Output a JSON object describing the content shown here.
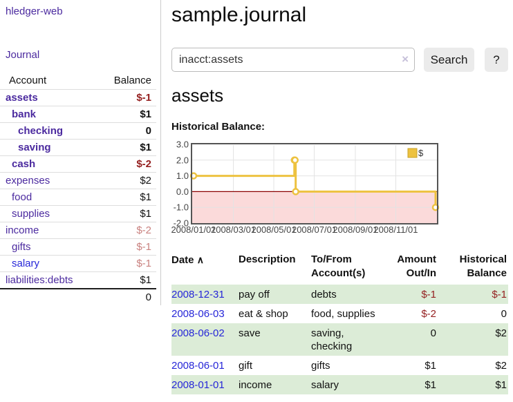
{
  "sidebar": {
    "brand": "hledger-web",
    "journal_link": "Journal",
    "accounts_table": {
      "headers": {
        "account": "Account",
        "balance": "Balance"
      },
      "rows": [
        {
          "name": "assets",
          "indent": 0,
          "balance": "$-1",
          "bold": true,
          "negative": "strong"
        },
        {
          "name": "bank",
          "indent": 1,
          "balance": "$1",
          "bold": true,
          "negative": "none"
        },
        {
          "name": "checking",
          "indent": 2,
          "balance": "0",
          "bold": true,
          "negative": "none"
        },
        {
          "name": "saving",
          "indent": 2,
          "balance": "$1",
          "bold": true,
          "negative": "none"
        },
        {
          "name": "cash",
          "indent": 1,
          "balance": "$-2",
          "bold": true,
          "negative": "strong"
        },
        {
          "name": "expenses",
          "indent": 0,
          "balance": "$2",
          "bold": false,
          "negative": "none"
        },
        {
          "name": "food",
          "indent": 1,
          "balance": "$1",
          "bold": false,
          "negative": "none"
        },
        {
          "name": "supplies",
          "indent": 1,
          "balance": "$1",
          "bold": false,
          "negative": "none"
        },
        {
          "name": "income",
          "indent": 0,
          "balance": "$-2",
          "bold": false,
          "negative": "soft"
        },
        {
          "name": "gifts",
          "indent": 1,
          "balance": "$-1",
          "bold": false,
          "negative": "soft"
        },
        {
          "name": "salary",
          "indent": 1,
          "balance": "$-1",
          "bold": false,
          "negative": "soft",
          "link_style": "blue"
        },
        {
          "name": "liabilities:debts",
          "indent": 0,
          "balance": "$1",
          "bold": false,
          "negative": "none"
        }
      ],
      "total": "0"
    }
  },
  "header": {
    "title": "sample.journal"
  },
  "search": {
    "value": "inacct:assets",
    "clear_icon": "×",
    "button_label": "Search",
    "help_label": "?"
  },
  "account_page": {
    "heading": "assets",
    "chart_label": "Historical Balance:"
  },
  "chart_data": {
    "type": "line",
    "title": "Historical Balance:",
    "step": true,
    "series": [
      {
        "name": "$",
        "color": "#edc240",
        "points": [
          [
            "2008-01-01",
            1
          ],
          [
            "2008-06-01",
            2
          ],
          [
            "2008-06-02",
            2
          ],
          [
            "2008-06-03",
            0
          ],
          [
            "2008-12-31",
            -1
          ]
        ]
      }
    ],
    "xlim": [
      "2008-01-01",
      "2008-12-31"
    ],
    "ylim": [
      -2,
      3
    ],
    "yticks": [
      "3.0",
      "2.0",
      "1.0",
      "0.0",
      "-1.0",
      "-2.0"
    ],
    "ytick_values": [
      3,
      2,
      1,
      0,
      -1,
      -2
    ],
    "xticks": [
      "2008/01/01",
      "2008/03/01",
      "2008/05/01",
      "2008/07/01",
      "2008/09/01",
      "2008/11/01"
    ],
    "xtick_dates": [
      "2008-01-01",
      "2008-03-01",
      "2008-05-01",
      "2008-07-01",
      "2008-09-01",
      "2008-11-01"
    ],
    "legend": "$",
    "legend_position": "top-right",
    "grid": true,
    "colors": {
      "line": "#edc240",
      "marker_fill": "#ffffff",
      "negative_region": "#fbdada",
      "zero_line": "#8b0000",
      "gridline": "#e3e3e3",
      "border": "#545454",
      "tick_text": "#444444"
    }
  },
  "register_table": {
    "columns": [
      "Date",
      "Description",
      "To/From Account(s)",
      "Amount Out/In",
      "Historical Balance"
    ],
    "sort_icon": "∧",
    "rows": [
      {
        "date": "2008-12-31",
        "description": "pay off",
        "accounts": "debts",
        "amount": "$-1",
        "balance": "$-1"
      },
      {
        "date": "2008-06-03",
        "description": "eat & shop",
        "accounts": "food, supplies",
        "amount": "$-2",
        "balance": "0"
      },
      {
        "date": "2008-06-02",
        "description": "save",
        "accounts": "saving, checking",
        "amount": "0",
        "balance": "$2"
      },
      {
        "date": "2008-06-01",
        "description": "gift",
        "accounts": "gifts",
        "amount": "$1",
        "balance": "$2"
      },
      {
        "date": "2008-01-01",
        "description": "income",
        "accounts": "salary",
        "amount": "$1",
        "balance": "$1"
      }
    ]
  }
}
